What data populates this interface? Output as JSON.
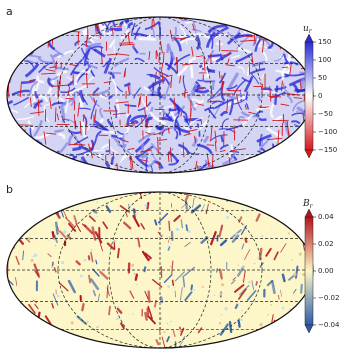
{
  "chart_data": [
    {
      "type": "map",
      "panel_label": "a",
      "colorbar_label": {
        "symbol": "u",
        "subscript": "r"
      },
      "colormap": [
        "#d7191c",
        "#ffffff",
        "#2b2bd8"
      ],
      "ylim": [
        -150,
        150
      ],
      "yticks": [
        {
          "value": -150,
          "label": "−150"
        },
        {
          "value": -100,
          "label": "−100"
        },
        {
          "value": -50,
          "label": "−50"
        },
        0,
        50,
        100,
        150
      ]
    },
    {
      "type": "map",
      "panel_label": "b",
      "colorbar_label": {
        "symbol": "B",
        "subscript": "r"
      },
      "colormap": [
        "#2c5ba6",
        "#fcf6c9",
        "#b2141e"
      ],
      "ylim": [
        -0.04,
        0.04
      ],
      "yticks": [
        {
          "value": -0.04,
          "label": "−0.04"
        },
        {
          "value": -0.02,
          "label": "−0.02"
        },
        {
          "value": 0,
          "label": "0.00"
        },
        0.02,
        0.04
      ]
    }
  ]
}
